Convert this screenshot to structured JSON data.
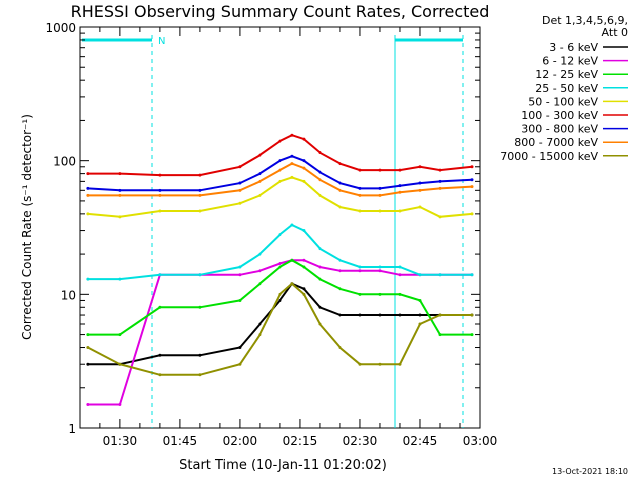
{
  "chart_data": {
    "type": "line",
    "title": "RHESSI Observing Summary Count Rates, Corrected",
    "xlabel": "Start Time (10-Jan-11 01:20:02)",
    "ylabel": "Corrected Count Rate (s⁻¹ detector⁻¹)",
    "xlim": [
      "01:20:02",
      "03:00:00"
    ],
    "ylim": [
      1,
      1000
    ],
    "yscale": "log",
    "x_ticks": [
      "01:30",
      "01:45",
      "02:00",
      "02:15",
      "02:30",
      "02:45",
      "03:00"
    ],
    "y_ticks": [
      "1",
      "10",
      "100",
      "1000"
    ],
    "legend": {
      "header_line1": "Det 1,3,4,5,6,9,",
      "header_line2": "Att 0",
      "placement": "right"
    },
    "footer_date": "13-Oct-2021 18:10",
    "annotation_n": "N",
    "x": [
      "01:22",
      "01:30",
      "01:40",
      "01:50",
      "02:00",
      "02:05",
      "02:10",
      "02:13",
      "02:16",
      "02:20",
      "02:25",
      "02:30",
      "02:35",
      "02:40",
      "02:45",
      "02:50",
      "02:58"
    ],
    "series": [
      {
        "name": "3 - 6 keV",
        "color": "#000000",
        "values": [
          3,
          3,
          3.5,
          3.5,
          4,
          6,
          9,
          12,
          11,
          8,
          7,
          7,
          7,
          7,
          7,
          7,
          7
        ]
      },
      {
        "name": "6 - 12 keV",
        "color": "#e000e0",
        "values": [
          1.5,
          1.5,
          14,
          14,
          14,
          15,
          17,
          18,
          18,
          16,
          15,
          15,
          15,
          14,
          14,
          14,
          14
        ]
      },
      {
        "name": "12 - 25 keV",
        "color": "#00e000",
        "values": [
          5,
          5,
          8,
          8,
          9,
          12,
          16,
          18,
          16,
          13,
          11,
          10,
          10,
          10,
          9,
          5,
          5
        ]
      },
      {
        "name": "25 - 50 keV",
        "color": "#00e0e0",
        "values": [
          13,
          13,
          14,
          14,
          16,
          20,
          28,
          33,
          30,
          22,
          18,
          16,
          16,
          16,
          14,
          14,
          14
        ]
      },
      {
        "name": "50 - 100 keV",
        "color": "#e0e000",
        "values": [
          40,
          38,
          42,
          42,
          48,
          55,
          70,
          75,
          70,
          55,
          45,
          42,
          42,
          42,
          45,
          38,
          40
        ]
      },
      {
        "name": "100 - 300 keV",
        "color": "#e00000",
        "values": [
          80,
          80,
          78,
          78,
          90,
          110,
          140,
          155,
          145,
          115,
          95,
          85,
          85,
          85,
          90,
          85,
          90
        ]
      },
      {
        "name": "300 - 800 keV",
        "color": "#0000e0",
        "values": [
          62,
          60,
          60,
          60,
          68,
          80,
          100,
          108,
          100,
          82,
          68,
          62,
          62,
          65,
          68,
          70,
          72
        ]
      },
      {
        "name": "800 - 7000 keV",
        "color": "#ff8000",
        "values": [
          55,
          55,
          55,
          55,
          60,
          70,
          85,
          95,
          88,
          72,
          60,
          55,
          55,
          58,
          60,
          62,
          64
        ]
      },
      {
        "name": "7000 - 15000 keV",
        "color": "#909000",
        "values": [
          4,
          3,
          2.5,
          2.5,
          3,
          5,
          10,
          12,
          10,
          6,
          4,
          3,
          3,
          3,
          6,
          7,
          7
        ]
      }
    ]
  }
}
